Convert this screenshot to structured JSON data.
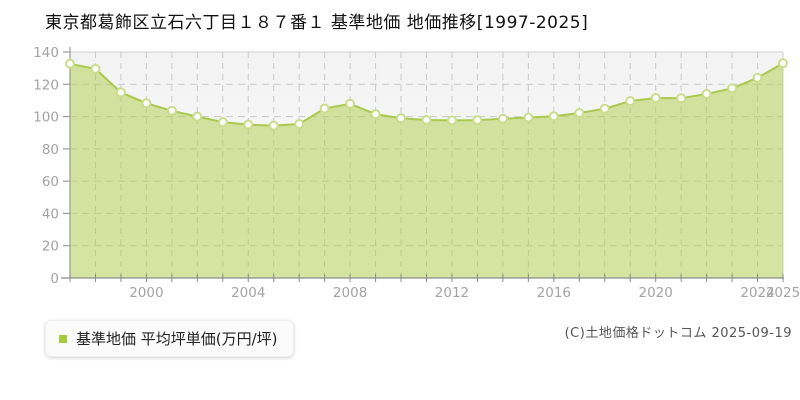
{
  "title": "東京都葛飾区立石六丁目１８７番１ 基準地価 地価推移[1997-2025]",
  "legend": {
    "label": "基準地価 平均坪単価(万円/坪)",
    "marker_color": "#a3cb3a"
  },
  "copyright": "(C)土地価格ドットコム 2025-09-19",
  "chart_data": {
    "type": "area",
    "title": "東京都葛飾区立石六丁目１８７番１ 基準地価 地価推移[1997-2025]",
    "series_name": "基準地価 平均坪単価(万円/坪)",
    "xlabel": "",
    "ylabel": "平均坪単価(万円/坪)",
    "x": [
      1997,
      1998,
      1999,
      2000,
      2001,
      2002,
      2003,
      2004,
      2005,
      2006,
      2007,
      2008,
      2009,
      2010,
      2011,
      2012,
      2013,
      2014,
      2015,
      2016,
      2017,
      2018,
      2019,
      2020,
      2021,
      2022,
      2023,
      2024,
      2025
    ],
    "values": [
      132.7,
      129.5,
      115.0,
      108.3,
      103.6,
      100.0,
      96.6,
      95.0,
      94.4,
      95.4,
      105.0,
      107.9,
      101.5,
      99.0,
      97.9,
      97.6,
      97.8,
      98.6,
      99.4,
      100.2,
      102.2,
      104.9,
      109.6,
      111.5,
      111.4,
      114.0,
      117.5,
      124.0,
      133.0
    ],
    "ylim": [
      0,
      140
    ],
    "y_ticks": [
      0,
      20,
      40,
      60,
      80,
      100,
      120,
      140
    ],
    "x_tick_labels": [
      2000,
      2004,
      2008,
      2012,
      2016,
      2020,
      2024,
      2025
    ],
    "grid": true,
    "legend_position": "bottom-left",
    "colors": {
      "area_fill": "#d7e6a2",
      "line": "#aac94f",
      "marker_fill": "#ffffff",
      "marker_stroke": "#cbdd8d",
      "grid": "#c9c9c9",
      "axis": "#8c8c8c",
      "tick_label": "#a3a3a3",
      "plot_bg_top": "#f3f3f3",
      "plot_bg_bottom": "#fbfbfb"
    }
  }
}
